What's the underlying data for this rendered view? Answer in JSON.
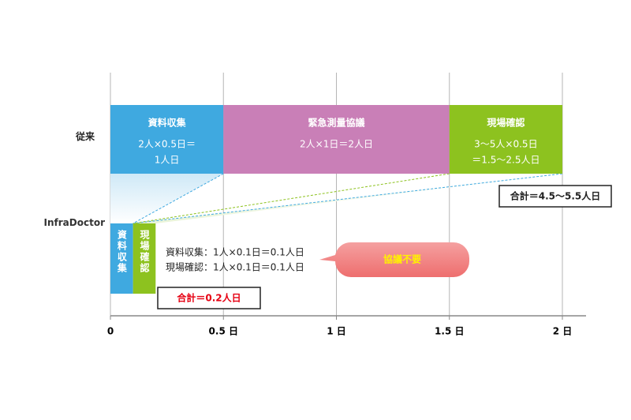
{
  "chart_data": {
    "type": "gantt",
    "xlim": [
      0,
      2
    ],
    "xticks": [
      0,
      {
        "value": 0.5,
        "label": "0.5 日"
      },
      {
        "value": 1,
        "label": "1 日"
      },
      {
        "value": 1.5,
        "label": "1.5 日"
      },
      {
        "value": 2,
        "label": "2 日"
      }
    ],
    "grid": true,
    "rows": [
      {
        "label": "従来",
        "tasks": [
          {
            "name": "資料収集",
            "start": 0,
            "end": 0.5,
            "color": "#3fa9e0",
            "detail": [
              "2人×0.5日＝",
              "1人日"
            ]
          },
          {
            "name": "緊急測量協議",
            "start": 0.5,
            "end": 1.5,
            "color": "#c97fb7",
            "detail": [
              "2人×1日＝2人日"
            ]
          },
          {
            "name": "現場確認",
            "start": 1.5,
            "end": 2,
            "color": "#8dc21f",
            "detail": [
              "3～5人×0.5日",
              "＝1.5～2.5人日"
            ]
          }
        ],
        "total": "合計＝4.5～5.5人日"
      },
      {
        "label": "InfraDoctor",
        "tasks": [
          {
            "name": "資料収集",
            "start": 0,
            "end": 0.1,
            "color": "#3fa9e0"
          },
          {
            "name": "現場確認",
            "start": 0.1,
            "end": 0.2,
            "color": "#8dc21f"
          }
        ],
        "details": [
          "資料収集：1人×0.1日＝0.1人日",
          "現場確認：1人×0.1日＝0.1人日"
        ],
        "total": "合計＝0.2人日",
        "callout": "協議不要"
      }
    ]
  }
}
